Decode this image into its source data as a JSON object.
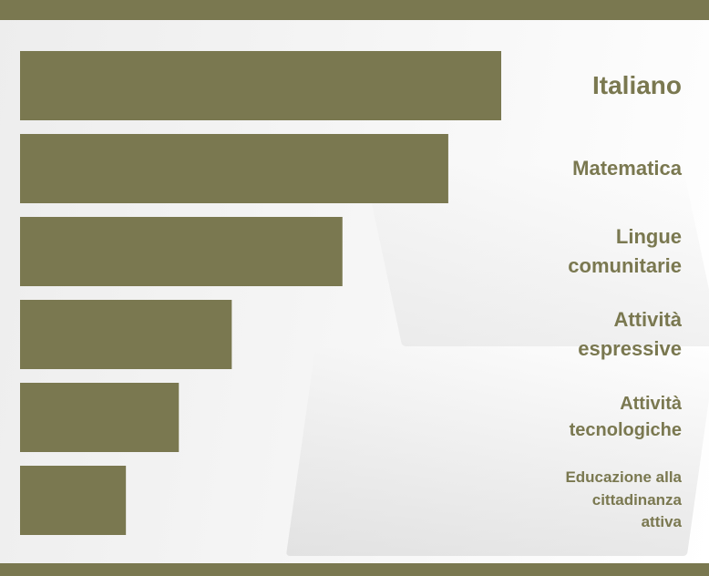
{
  "colors": {
    "bar": "#7a7850",
    "label": "#7a7850",
    "band": "#7a7850"
  },
  "chart_data": {
    "type": "bar",
    "orientation": "horizontal",
    "categories": [
      "Italiano",
      "Matematica",
      "Lingue\ncomunitarie",
      "Attività\nespressive",
      "Attività\ntecnologiche",
      "Educazione alla\ncittadinanza\nattiva"
    ],
    "values": [
      100,
      89,
      67,
      44,
      33,
      22
    ],
    "xlim": [
      0,
      100
    ],
    "title": "",
    "xlabel": "",
    "ylabel": "",
    "grid": false,
    "legend": "none"
  }
}
